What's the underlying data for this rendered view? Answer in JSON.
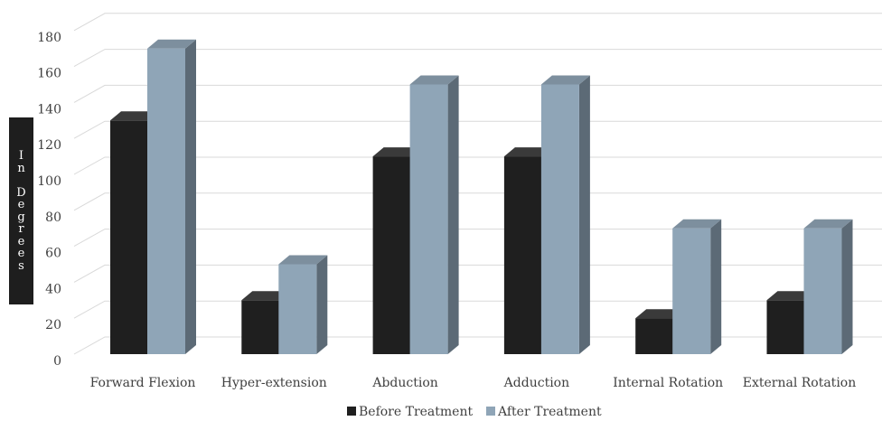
{
  "chart_data": {
    "type": "bar",
    "categories": [
      "Forward Flexion",
      "Hyper-extension",
      "Abduction",
      "Adduction",
      "Internal Rotation",
      "External Rotation"
    ],
    "series": [
      {
        "name": "Before Treatment",
        "values": [
          130,
          30,
          110,
          110,
          20,
          30
        ],
        "color": "#1f1f1f"
      },
      {
        "name": "After Treatment",
        "values": [
          170,
          50,
          150,
          150,
          70,
          70
        ],
        "color": "#8fa5b7"
      }
    ],
    "ylabel": "In Degrees",
    "ylim": [
      0,
      180
    ],
    "yticks": [
      0,
      20,
      40,
      60,
      80,
      100,
      120,
      140,
      160,
      180
    ],
    "grid": true,
    "legend": "bottom",
    "three_d": true
  }
}
